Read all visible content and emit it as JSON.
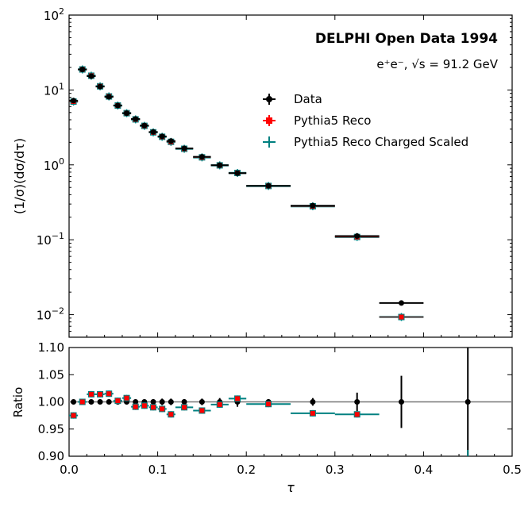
{
  "chart_data": [
    {
      "type": "scatter",
      "panel": "main",
      "title": "DELPHI Open Data 1994",
      "subtitle": "e⁺e⁻, √s = 91.2 GeV",
      "xlabel": "",
      "ylabel": "(1/σ)(dσ/dτ)",
      "xlim": [
        0.0,
        0.5
      ],
      "ylim": [
        0.005,
        100
      ],
      "yscale": "log",
      "y_ticks": [
        {
          "value": 0.01,
          "base": "10",
          "exp": "−2"
        },
        {
          "value": 0.1,
          "base": "10",
          "exp": "−1"
        },
        {
          "value": 1,
          "base": "10",
          "exp": "0"
        },
        {
          "value": 10,
          "base": "10",
          "exp": "1"
        },
        {
          "value": 100,
          "base": "10",
          "exp": "2"
        }
      ],
      "legend_position": "upper-center",
      "bins": [
        [
          0.0,
          0.01
        ],
        [
          0.01,
          0.02
        ],
        [
          0.02,
          0.03
        ],
        [
          0.03,
          0.04
        ],
        [
          0.04,
          0.05
        ],
        [
          0.05,
          0.06
        ],
        [
          0.06,
          0.07
        ],
        [
          0.07,
          0.08
        ],
        [
          0.08,
          0.09
        ],
        [
          0.09,
          0.1
        ],
        [
          0.1,
          0.11
        ],
        [
          0.11,
          0.12
        ],
        [
          0.12,
          0.14
        ],
        [
          0.14,
          0.16
        ],
        [
          0.16,
          0.18
        ],
        [
          0.18,
          0.2
        ],
        [
          0.2,
          0.25
        ],
        [
          0.25,
          0.3
        ],
        [
          0.3,
          0.35
        ],
        [
          0.35,
          0.4
        ],
        [
          0.4,
          0.5
        ]
      ],
      "series": [
        {
          "name": "Data",
          "color": "#000000",
          "marker": "circle",
          "values": [
            7.2,
            18.8,
            15.3,
            11.1,
            8.1,
            6.2,
            4.9,
            4.1,
            3.35,
            2.75,
            2.4,
            2.08,
            1.66,
            1.28,
            0.99,
            0.775,
            0.525,
            0.285,
            0.112,
            0.0143,
            null
          ]
        },
        {
          "name": "Pythia5 Reco",
          "color": "#ff0000",
          "marker": "square",
          "values": [
            7.0,
            18.8,
            15.5,
            11.2,
            8.2,
            6.2,
            4.9,
            4.05,
            3.32,
            2.72,
            2.37,
            2.03,
            1.64,
            1.26,
            0.985,
            0.78,
            0.523,
            0.28,
            0.109,
            0.0093,
            null
          ]
        },
        {
          "name": "Pythia5 Reco Charged Scaled",
          "color": "#008080",
          "marker": "plus",
          "values": [
            7.0,
            18.8,
            15.5,
            11.2,
            8.2,
            6.2,
            4.9,
            4.05,
            3.32,
            2.72,
            2.37,
            2.03,
            1.64,
            1.26,
            0.985,
            0.78,
            0.523,
            0.28,
            0.109,
            0.0093,
            null
          ]
        }
      ]
    },
    {
      "type": "scatter",
      "panel": "ratio",
      "xlabel": "τ",
      "ylabel": "Ratio",
      "xlim": [
        0.0,
        0.5
      ],
      "ylim": [
        0.9,
        1.1
      ],
      "x_ticks": [
        "0.0",
        "0.1",
        "0.2",
        "0.3",
        "0.4",
        "0.5"
      ],
      "y_ticks": [
        "0.90",
        "0.95",
        "1.00",
        "1.05",
        "1.10"
      ],
      "reference_line": 1.0,
      "data_ratio": {
        "color": "#000000",
        "values": [
          1.0,
          1.0,
          1.0,
          1.0,
          1.0,
          1.0,
          1.0,
          1.0,
          1.0,
          1.0,
          1.0,
          1.0,
          1.0,
          1.0,
          1.0,
          1.0,
          1.0,
          1.0,
          1.0,
          1.0,
          1.0
        ],
        "errors": [
          0.002,
          0.002,
          0.002,
          0.002,
          0.002,
          0.003,
          0.003,
          0.004,
          0.004,
          0.005,
          0.006,
          0.006,
          0.005,
          0.006,
          0.007,
          0.009,
          0.005,
          0.007,
          0.017,
          0.048,
          0.12
        ]
      },
      "mc_ratio": {
        "color": "#ff0000",
        "edge_color": "#008080",
        "values": [
          0.975,
          1.0,
          1.014,
          1.014,
          1.015,
          1.002,
          1.007,
          0.991,
          0.993,
          0.99,
          0.987,
          0.977,
          0.99,
          0.984,
          0.995,
          1.006,
          0.996,
          0.979,
          0.977,
          null,
          null
        ]
      }
    }
  ]
}
